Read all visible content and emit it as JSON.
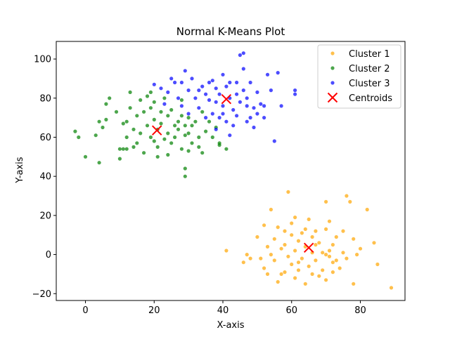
{
  "chart_data": {
    "type": "scatter",
    "title": "Normal K-Means Plot",
    "xlabel": "X-axis",
    "ylabel": "Y-axis",
    "xlim": [
      -8.5,
      93
    ],
    "ylim": [
      -23.5,
      109
    ],
    "xticks": [
      0,
      20,
      40,
      60,
      80
    ],
    "yticks": [
      -20,
      0,
      20,
      40,
      60,
      80,
      100
    ],
    "grid": false,
    "legend_position": "top-right",
    "series": [
      {
        "name": "Cluster 1",
        "color": "#FFA500",
        "points": [
          [
            59,
            32
          ],
          [
            76,
            30
          ],
          [
            77,
            27
          ],
          [
            70,
            27
          ],
          [
            82,
            23
          ],
          [
            54,
            23
          ],
          [
            61,
            19
          ],
          [
            65,
            18
          ],
          [
            71,
            17
          ],
          [
            52,
            15
          ],
          [
            56,
            14
          ],
          [
            67,
            12
          ],
          [
            58,
            12
          ],
          [
            63,
            11
          ],
          [
            70,
            13
          ],
          [
            75,
            12
          ],
          [
            60,
            10
          ],
          [
            66,
            9
          ],
          [
            73,
            9
          ],
          [
            78,
            8
          ],
          [
            50,
            9
          ],
          [
            55,
            8
          ],
          [
            62,
            7
          ],
          [
            68,
            6
          ],
          [
            72,
            5
          ],
          [
            64,
            4
          ],
          [
            57,
            3
          ],
          [
            53,
            4
          ],
          [
            61,
            2
          ],
          [
            66,
            1
          ],
          [
            70,
            0
          ],
          [
            75,
            1
          ],
          [
            79,
            0
          ],
          [
            71,
            2
          ],
          [
            59,
            -1
          ],
          [
            63,
            -2
          ],
          [
            67,
            -3
          ],
          [
            72,
            -4
          ],
          [
            55,
            -3
          ],
          [
            60,
            -5
          ],
          [
            65,
            -6
          ],
          [
            69,
            -8
          ],
          [
            74,
            -7
          ],
          [
            51,
            -2
          ],
          [
            48,
            -2
          ],
          [
            57,
            -10
          ],
          [
            61,
            -12
          ],
          [
            56,
            -14
          ],
          [
            64,
            -15
          ],
          [
            70,
            -13
          ],
          [
            78,
            -15
          ],
          [
            84,
            6
          ],
          [
            85,
            -5
          ],
          [
            89,
            -17
          ],
          [
            41,
            2
          ],
          [
            46,
            -4
          ],
          [
            52,
            -7
          ],
          [
            58,
            -9
          ],
          [
            66,
            -10
          ],
          [
            62,
            -8
          ],
          [
            73,
            -3
          ],
          [
            67,
            5
          ],
          [
            64,
            13
          ],
          [
            60,
            16
          ],
          [
            69,
            1
          ],
          [
            71,
            -1
          ],
          [
            76,
            -2
          ],
          [
            80,
            3
          ],
          [
            54,
            0
          ],
          [
            58,
            5
          ],
          [
            62,
            -4
          ],
          [
            47,
            0
          ],
          [
            53,
            -10
          ],
          [
            68,
            -11
          ],
          [
            72,
            -9
          ]
        ]
      },
      {
        "name": "Cluster 2",
        "color": "#008000",
        "points": [
          [
            -3,
            63
          ],
          [
            -2,
            60
          ],
          [
            0,
            50
          ],
          [
            3,
            61
          ],
          [
            4,
            47
          ],
          [
            4,
            68
          ],
          [
            5,
            65
          ],
          [
            6,
            77
          ],
          [
            7,
            80
          ],
          [
            6,
            69
          ],
          [
            9,
            73
          ],
          [
            10,
            49
          ],
          [
            11,
            54
          ],
          [
            11,
            67
          ],
          [
            12,
            60
          ],
          [
            12,
            68
          ],
          [
            13,
            83
          ],
          [
            13,
            75
          ],
          [
            14,
            64
          ],
          [
            14,
            55
          ],
          [
            15,
            57
          ],
          [
            15,
            71
          ],
          [
            16,
            79
          ],
          [
            16,
            62
          ],
          [
            17,
            52
          ],
          [
            17,
            73
          ],
          [
            18,
            81
          ],
          [
            18,
            66
          ],
          [
            19,
            60
          ],
          [
            19,
            75
          ],
          [
            19,
            83
          ],
          [
            20,
            58
          ],
          [
            20,
            69
          ],
          [
            20,
            78
          ],
          [
            21,
            55
          ],
          [
            21,
            64
          ],
          [
            21,
            50
          ],
          [
            22,
            67
          ],
          [
            22,
            73
          ],
          [
            23,
            59
          ],
          [
            23,
            80
          ],
          [
            24,
            62
          ],
          [
            24,
            71
          ],
          [
            24,
            51
          ],
          [
            25,
            57
          ],
          [
            25,
            74
          ],
          [
            26,
            66
          ],
          [
            26,
            60
          ],
          [
            27,
            68
          ],
          [
            27,
            64
          ],
          [
            28,
            71
          ],
          [
            28,
            54
          ],
          [
            28,
            79
          ],
          [
            29,
            66
          ],
          [
            29,
            61
          ],
          [
            29,
            44
          ],
          [
            29,
            40
          ],
          [
            30,
            62
          ],
          [
            30,
            70
          ],
          [
            30,
            53
          ],
          [
            31,
            57
          ],
          [
            31,
            66
          ],
          [
            32,
            68
          ],
          [
            33,
            55
          ],
          [
            33,
            60
          ],
          [
            34,
            52
          ],
          [
            34,
            73
          ],
          [
            35,
            63
          ],
          [
            36,
            68
          ],
          [
            37,
            60
          ],
          [
            38,
            65
          ],
          [
            39,
            57
          ],
          [
            39,
            56
          ],
          [
            41,
            54
          ],
          [
            12,
            54
          ],
          [
            10,
            54
          ]
        ]
      },
      {
        "name": "Cluster 3",
        "color": "#0000FF",
        "points": [
          [
            20,
            87
          ],
          [
            22,
            85
          ],
          [
            24,
            83
          ],
          [
            26,
            88
          ],
          [
            27,
            80
          ],
          [
            28,
            76
          ],
          [
            29,
            94
          ],
          [
            30,
            84
          ],
          [
            31,
            90
          ],
          [
            32,
            80
          ],
          [
            33,
            75
          ],
          [
            34,
            86
          ],
          [
            35,
            82
          ],
          [
            36,
            88
          ],
          [
            37,
            72
          ],
          [
            37,
            89
          ],
          [
            38,
            78
          ],
          [
            38,
            85
          ],
          [
            39,
            70
          ],
          [
            39,
            82
          ],
          [
            40,
            92
          ],
          [
            40,
            76
          ],
          [
            41,
            86
          ],
          [
            41,
            68
          ],
          [
            42,
            80
          ],
          [
            42,
            88
          ],
          [
            43,
            74
          ],
          [
            43,
            66
          ],
          [
            44,
            82
          ],
          [
            44,
            71
          ],
          [
            45,
            78
          ],
          [
            45,
            102
          ],
          [
            46,
            103
          ],
          [
            46,
            95
          ],
          [
            46,
            84
          ],
          [
            47,
            76
          ],
          [
            47,
            80
          ],
          [
            48,
            70
          ],
          [
            48,
            88
          ],
          [
            49,
            75
          ],
          [
            50,
            72
          ],
          [
            50,
            83
          ],
          [
            51,
            77
          ],
          [
            52,
            70
          ],
          [
            53,
            92
          ],
          [
            54,
            84
          ],
          [
            55,
            58
          ],
          [
            56,
            93
          ],
          [
            57,
            76
          ],
          [
            61,
            84
          ],
          [
            61,
            82
          ],
          [
            35,
            70
          ],
          [
            36,
            79
          ],
          [
            33,
            84
          ],
          [
            30,
            72
          ],
          [
            28,
            88
          ],
          [
            25,
            90
          ],
          [
            23,
            77
          ],
          [
            40,
            72
          ],
          [
            42,
            61
          ],
          [
            38,
            64
          ],
          [
            44,
            88
          ],
          [
            47,
            68
          ],
          [
            49,
            65
          ],
          [
            52,
            76
          ]
        ]
      }
    ],
    "centroids": {
      "name": "Centroids",
      "color": "#FF0000",
      "points": [
        [
          65,
          3.5
        ],
        [
          20.8,
          63.5
        ],
        [
          41,
          79.5
        ]
      ]
    }
  }
}
